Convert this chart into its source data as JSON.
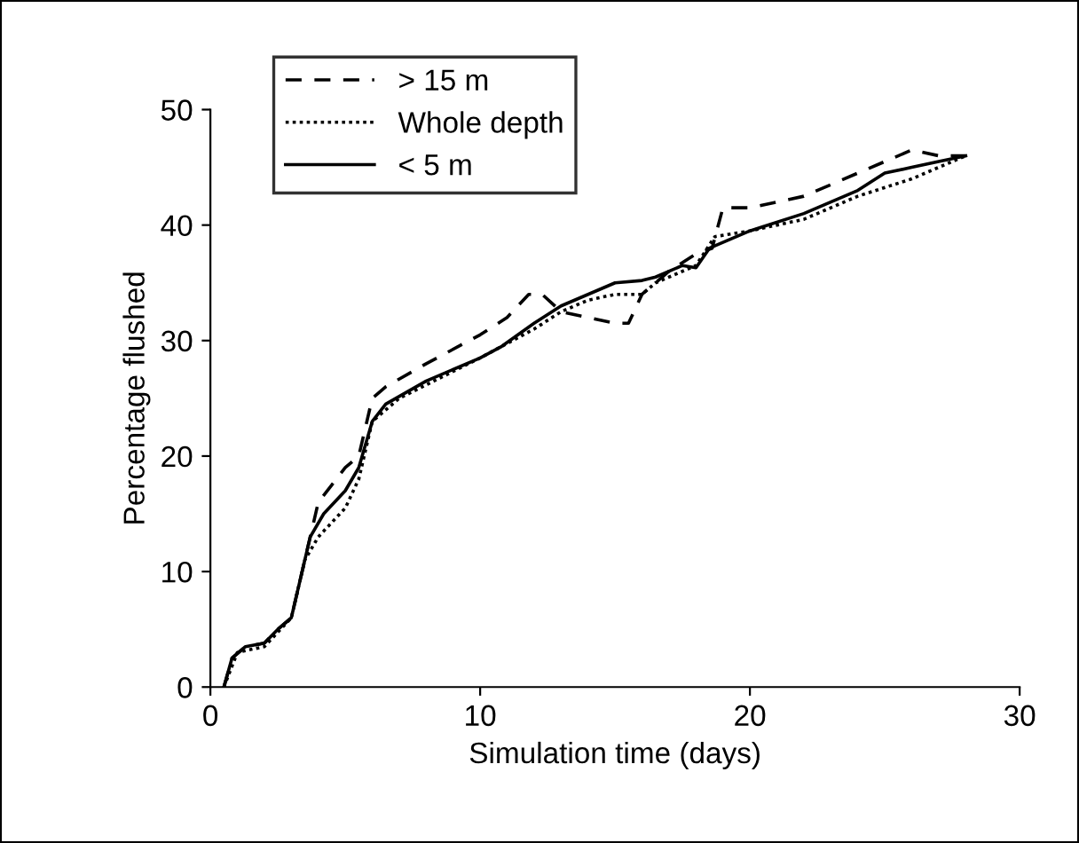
{
  "chart_data": {
    "type": "line",
    "xlabel": "Simulation time (days)",
    "ylabel": "Percentage flushed",
    "xlim": [
      0,
      30
    ],
    "ylim": [
      0,
      50
    ],
    "xticks": [
      0,
      10,
      20,
      30
    ],
    "yticks": [
      0,
      10,
      20,
      30,
      40,
      50
    ],
    "grid": false,
    "legend": "top left",
    "marker": "none",
    "series": [
      {
        "name": "> 15 m",
        "color": "#000000",
        "line_style": "dashed",
        "x": [
          0.5,
          0.8,
          1.3,
          2,
          2.5,
          3,
          3.3,
          4,
          5,
          5.5,
          6,
          6.5,
          8,
          10,
          11,
          11.8,
          12.3,
          13,
          14,
          15,
          15.5,
          16,
          17,
          18,
          18.6,
          19,
          20,
          21,
          22,
          23,
          24,
          25,
          26,
          27,
          28
        ],
        "values": [
          0,
          2.5,
          3.5,
          3.8,
          5,
          6,
          9,
          16,
          19,
          20,
          25,
          26,
          28,
          30.5,
          32,
          34,
          34,
          32.5,
          32,
          31.5,
          31.5,
          34,
          36,
          37.5,
          38,
          41.5,
          41.5,
          42,
          42.5,
          43.5,
          44.5,
          45.5,
          46.5,
          46,
          46
        ]
      },
      {
        "name": "Whole depth",
        "color": "#000000",
        "line_style": "dotted",
        "x": [
          0.5,
          1,
          2,
          3,
          3.5,
          4,
          5,
          5.5,
          6,
          7,
          10,
          12,
          13,
          14,
          15,
          16,
          16.5,
          18,
          18.7,
          20,
          22,
          24,
          26,
          27,
          28
        ],
        "values": [
          0,
          3,
          3.5,
          6,
          11,
          13,
          15.5,
          18,
          23,
          25,
          28.5,
          31,
          32.5,
          33.5,
          34,
          34,
          35,
          36.5,
          39,
          39.5,
          40.5,
          42.5,
          44,
          45,
          46
        ]
      },
      {
        "name": "< 5 m",
        "color": "#000000",
        "line_style": "solid",
        "x": [
          0.5,
          0.8,
          1.3,
          2,
          2.5,
          3,
          3.3,
          3.7,
          4.2,
          5,
          5.5,
          6,
          6.5,
          8,
          10,
          10.8,
          12,
          13,
          14,
          15,
          16,
          16.5,
          17.5,
          18,
          18.5,
          19,
          20,
          22,
          23,
          24,
          25,
          26,
          27,
          28
        ],
        "values": [
          0,
          2.5,
          3.5,
          3.8,
          5,
          6,
          9,
          13,
          15,
          17,
          19,
          23,
          24.5,
          26.5,
          28.5,
          29.5,
          31.5,
          33,
          34,
          35,
          35.2,
          35.5,
          36.5,
          36.3,
          38,
          38.5,
          39.5,
          41,
          42,
          43,
          44.5,
          45,
          45.5,
          46
        ]
      }
    ]
  }
}
